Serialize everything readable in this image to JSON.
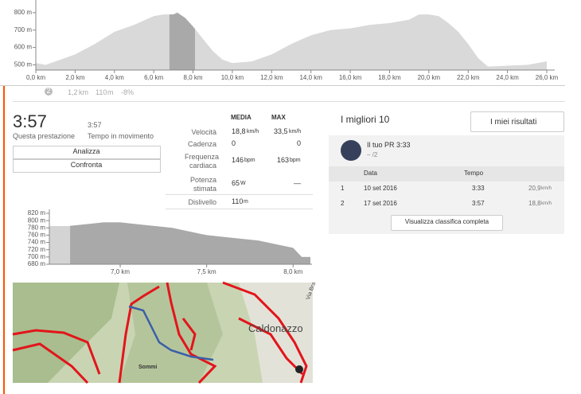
{
  "elevation_chart": {
    "type": "area",
    "x": [
      0,
      0.5,
      1,
      2,
      3,
      4,
      5,
      6,
      6.5,
      7,
      7.2,
      7.6,
      8,
      8.5,
      9,
      9.5,
      10,
      11,
      12,
      13,
      14,
      15,
      16,
      17,
      18,
      19,
      19.5,
      20,
      20.5,
      21,
      21.5,
      22,
      22.5,
      23,
      24,
      25,
      26
    ],
    "values": [
      510,
      500,
      520,
      560,
      620,
      690,
      730,
      780,
      790,
      790,
      800,
      770,
      720,
      650,
      580,
      530,
      510,
      520,
      560,
      620,
      670,
      700,
      710,
      730,
      740,
      760,
      790,
      790,
      780,
      740,
      690,
      620,
      540,
      490,
      495,
      500,
      520
    ],
    "xlim": [
      0,
      26
    ],
    "ylim": [
      470,
      850
    ],
    "yticks": [
      {
        "value": 500,
        "label": "500 m"
      },
      {
        "value": 600,
        "label": "600 m"
      },
      {
        "value": 700,
        "label": "700 m"
      },
      {
        "value": 800,
        "label": "800 m"
      }
    ],
    "xticks": [
      {
        "value": 0,
        "label": "0,0 km"
      },
      {
        "value": 2,
        "label": "2,0 km"
      },
      {
        "value": 4,
        "label": "4,0 km"
      },
      {
        "value": 6,
        "label": "6,0 km"
      },
      {
        "value": 8,
        "label": "8,0 km"
      },
      {
        "value": 10,
        "label": "10,0 km"
      },
      {
        "value": 12,
        "label": "12,0 km"
      },
      {
        "value": 14,
        "label": "14,0 km"
      },
      {
        "value": 16,
        "label": "16,0 km"
      },
      {
        "value": 18,
        "label": "18,0 km"
      },
      {
        "value": 20,
        "label": "20,0 km"
      },
      {
        "value": 22,
        "label": "22,0 km"
      },
      {
        "value": 24,
        "label": "24,0 km"
      },
      {
        "value": 26,
        "label": "26,0 km"
      }
    ],
    "highlight": [
      6.8,
      8.1
    ],
    "color": "#d9d9d9",
    "highlight_color": "#a9a9a9"
  },
  "segment_row": {
    "rank": "2",
    "distance": "1,2",
    "distance_unit": "km",
    "elevation": "110",
    "elevation_unit": "m",
    "grade": "-8%"
  },
  "effort": {
    "time": "3:57",
    "time_label": "Questa prestazione",
    "moving_time": "3:57",
    "moving_label": "Tempo in movimento",
    "buttons": [
      "Analizza",
      "Confronta"
    ]
  },
  "stats": {
    "headers": [
      "MEDIA",
      "MAX"
    ],
    "rows": [
      {
        "label": "Velocità",
        "avg": "18,8",
        "avg_unit": "km/h",
        "max": "33,5",
        "max_unit": "km/h"
      },
      {
        "label": "Cadenza",
        "avg": "0",
        "max": "0"
      },
      {
        "label": "Frequenza cardiaca",
        "avg": "146",
        "avg_unit": "bpm",
        "max": "163",
        "max_unit": "bpm"
      },
      {
        "label": "Potenza stimata",
        "avg": "65",
        "avg_unit": "W",
        "max": "—"
      },
      {
        "label": "Dislivello",
        "avg": "110",
        "avg_unit": "m"
      }
    ]
  },
  "segment_chart": {
    "type": "area",
    "x": [
      6.59,
      6.7,
      6.8,
      6.9,
      7.0,
      7.1,
      7.2,
      7.3,
      7.4,
      7.5,
      7.6,
      7.7,
      7.8,
      7.9,
      8.0,
      8.05,
      8.1
    ],
    "values": [
      785,
      785,
      790,
      795,
      795,
      790,
      785,
      780,
      770,
      760,
      755,
      750,
      745,
      735,
      725,
      700,
      700
    ],
    "xlim": [
      6.59,
      8.1
    ],
    "ylim": [
      680,
      820
    ],
    "yticks": [
      {
        "value": 680,
        "label": "680 m"
      },
      {
        "value": 700,
        "label": "700 m"
      },
      {
        "value": 720,
        "label": "720 m"
      },
      {
        "value": 740,
        "label": "740 m"
      },
      {
        "value": 760,
        "label": "760 m"
      },
      {
        "value": 780,
        "label": "780 m"
      },
      {
        "value": 800,
        "label": "800 m"
      },
      {
        "value": 820,
        "label": "820 m"
      }
    ],
    "xticks": [
      {
        "value": 7,
        "label": "7,0 km"
      },
      {
        "value": 7.5,
        "label": "7,5 km"
      },
      {
        "value": 8,
        "label": "8,0 km"
      }
    ],
    "highlight": [
      6.71,
      8.1
    ],
    "color": "#d4d4d4",
    "highlight_color": "#a9a9a9"
  },
  "map": {
    "labels": [
      "Caldonazzo",
      "Sommi",
      "Via Bra"
    ]
  },
  "leaderboard": {
    "title": "I migliori 10",
    "filter": "I miei risultati",
    "pr_label": "Il tuo PR 3:33",
    "pr_rank": "– /2",
    "columns": [
      "Data",
      "Tempo"
    ],
    "rows": [
      [
        "1",
        "10 set 2016",
        "3:33",
        "20,9",
        "km/h"
      ],
      [
        "2",
        "17 set 2016",
        "3:57",
        "18,8",
        "km/h"
      ]
    ],
    "button": "Visualizza classifica completa"
  }
}
